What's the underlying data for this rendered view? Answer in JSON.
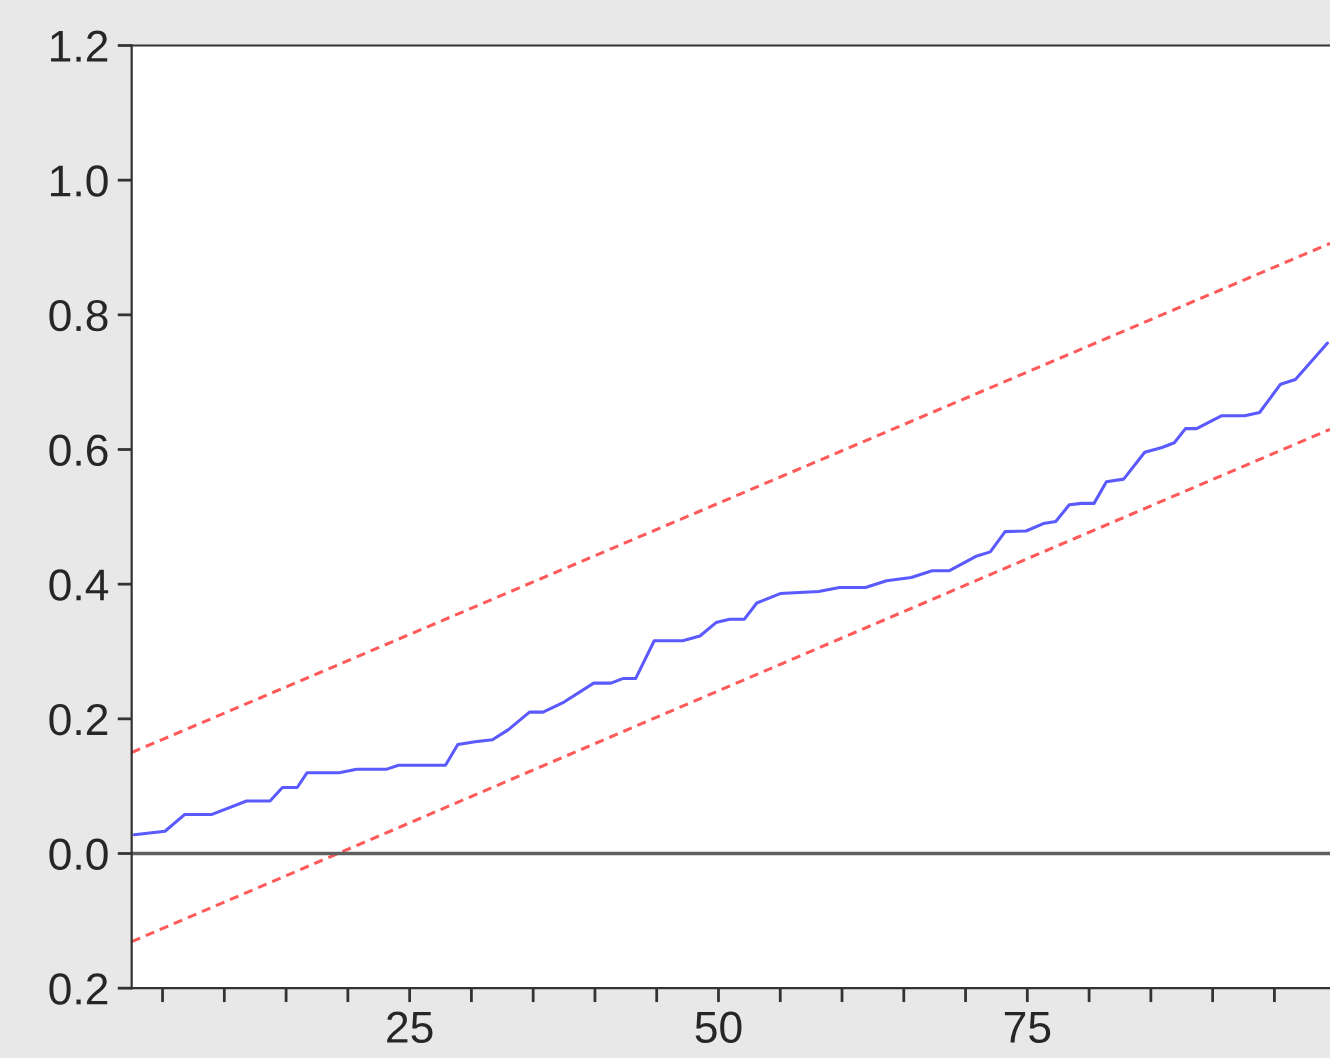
{
  "chart_data": {
    "type": "line",
    "xlim": [
      2.5,
      99.5
    ],
    "ylim": [
      -0.2,
      1.2
    ],
    "xticks": [
      {
        "value": 5,
        "label": null
      },
      {
        "value": 10,
        "label": null
      },
      {
        "value": 15,
        "label": null
      },
      {
        "value": 20,
        "label": null
      },
      25,
      {
        "value": 30,
        "label": null
      },
      {
        "value": 35,
        "label": null
      },
      {
        "value": 40,
        "label": null
      },
      {
        "value": 45,
        "label": null
      },
      50,
      {
        "value": 55,
        "label": null
      },
      {
        "value": 60,
        "label": null
      },
      {
        "value": 65,
        "label": null
      },
      {
        "value": 70,
        "label": null
      },
      75,
      {
        "value": 80,
        "label": null
      },
      {
        "value": 85,
        "label": null
      },
      {
        "value": 90,
        "label": null
      },
      {
        "value": 95,
        "label": null
      }
    ],
    "yticks": [
      {
        "value": -0.2,
        "label": "0.2"
      },
      {
        "value": 0,
        "label": "0.0"
      },
      0.2,
      0.4,
      0.6,
      0.8,
      {
        "value": 1,
        "label": "1.0"
      },
      1.2
    ],
    "grid": false,
    "legend": false,
    "ref_lines": [
      {
        "axis": "y",
        "value": 0,
        "color": "#606060",
        "line_style": "solid"
      }
    ],
    "series": [
      {
        "color": "#5a5aff",
        "line_style": "solid",
        "x": [
          2.7,
          5.2,
          6.8,
          9.0,
          11.8,
          13.7,
          14.7,
          15.9,
          16.7,
          19.3,
          20.7,
          23.1,
          24.1,
          27.9,
          28.9,
          30.3,
          31.7,
          33.0,
          34.7,
          35.8,
          37.5,
          39.9,
          41.3,
          42.3,
          43.3,
          44.8,
          47.1,
          48.5,
          49.8,
          50.9,
          52.1,
          53.1,
          55.0,
          58.1,
          59.8,
          61.9,
          63.6,
          65.6,
          67.3,
          68.7,
          70.8,
          72.0,
          73.2,
          74.9,
          76.3,
          77.3,
          78.4,
          79.4,
          80.4,
          81.4,
          82.8,
          84.5,
          85.9,
          86.9,
          87.8,
          88.7,
          90.7,
          92.6,
          93.8,
          95.5,
          96.7,
          99.3
        ],
        "values": [
          0.028,
          0.033,
          0.058,
          0.058,
          0.078,
          0.078,
          0.098,
          0.098,
          0.12,
          0.12,
          0.125,
          0.125,
          0.131,
          0.131,
          0.162,
          0.166,
          0.169,
          0.184,
          0.21,
          0.21,
          0.225,
          0.253,
          0.253,
          0.26,
          0.26,
          0.316,
          0.316,
          0.323,
          0.343,
          0.348,
          0.348,
          0.372,
          0.386,
          0.389,
          0.395,
          0.395,
          0.405,
          0.41,
          0.42,
          0.42,
          0.441,
          0.448,
          0.478,
          0.479,
          0.49,
          0.493,
          0.518,
          0.52,
          0.52,
          0.552,
          0.556,
          0.596,
          0.603,
          0.61,
          0.631,
          0.631,
          0.65,
          0.65,
          0.655,
          0.697,
          0.704,
          0.758
        ]
      },
      {
        "color": "#ff5a5a",
        "line_style": "dashed",
        "x": [
          2.5,
          99.5
        ],
        "values": [
          0.15,
          0.906
        ]
      },
      {
        "color": "#ff5a5a",
        "line_style": "dashed",
        "x": [
          2.5,
          99.5
        ],
        "values": [
          -0.131,
          0.63
        ]
      }
    ]
  }
}
